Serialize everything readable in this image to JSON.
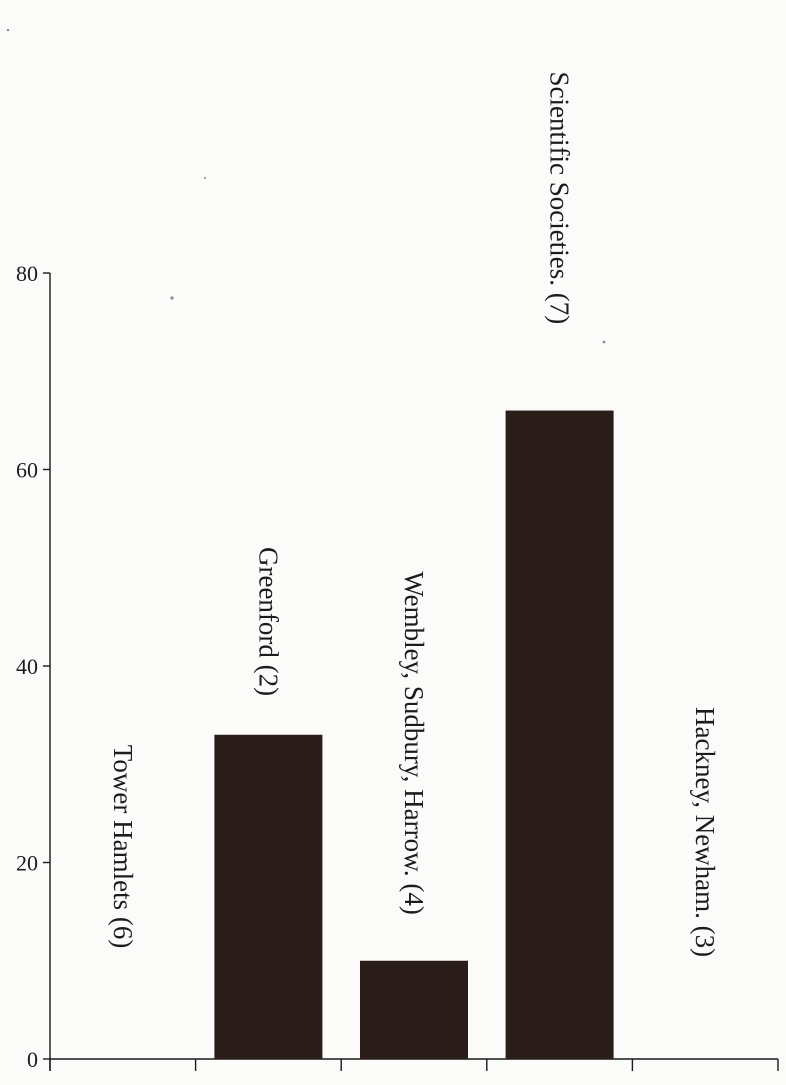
{
  "chart_data": {
    "type": "bar",
    "title": "",
    "xlabel": "",
    "ylabel": "",
    "ylim": [
      0,
      80
    ],
    "yticks": [
      "0",
      "20",
      "40",
      "60",
      "80"
    ],
    "categories": [
      "Tower Hamlets (6)",
      "Greenford (2)",
      "Wembley, Sudbury, Harrow. (4)",
      "Scientific Societies. (7)",
      "Hackney, Newham. (3)"
    ],
    "values": [
      0,
      33,
      10,
      66,
      0
    ],
    "bar_color": "#2a1d1a",
    "grid": false,
    "legend": "none"
  }
}
